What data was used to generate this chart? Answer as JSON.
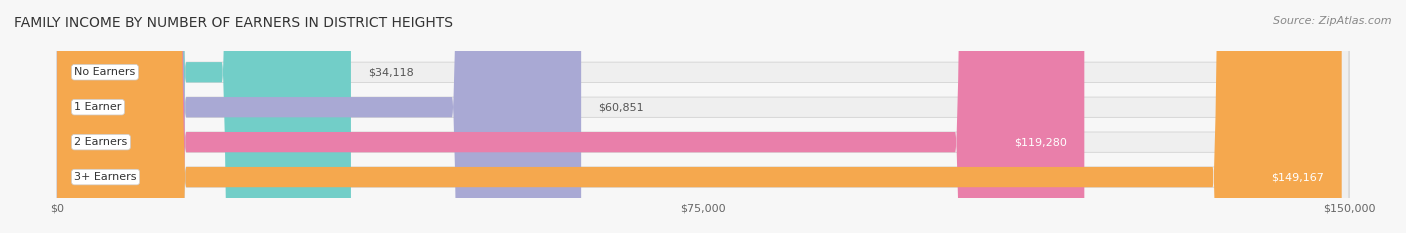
{
  "title": "FAMILY INCOME BY NUMBER OF EARNERS IN DISTRICT HEIGHTS",
  "source": "Source: ZipAtlas.com",
  "categories": [
    "No Earners",
    "1 Earner",
    "2 Earners",
    "3+ Earners"
  ],
  "values": [
    34118,
    60851,
    119280,
    149167
  ],
  "labels": [
    "$34,118",
    "$60,851",
    "$119,280",
    "$149,167"
  ],
  "bar_colors": [
    "#72CEC8",
    "#A9A9D4",
    "#E97FAA",
    "#F5A84E"
  ],
  "bar_bg_color": "#EFEFEF",
  "label_colors": [
    "#555555",
    "#555555",
    "#ffffff",
    "#ffffff"
  ],
  "x_max": 150000,
  "x_ticks": [
    0,
    75000,
    150000
  ],
  "x_tick_labels": [
    "$0",
    "$75,000",
    "$150,000"
  ],
  "fig_width": 14.06,
  "fig_height": 2.33,
  "title_fontsize": 10,
  "source_fontsize": 8,
  "bar_label_fontsize": 8,
  "category_fontsize": 8
}
